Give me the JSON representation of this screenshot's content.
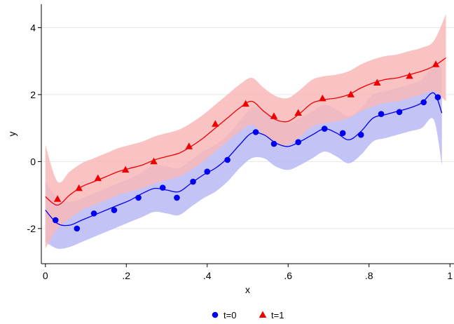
{
  "chart_data": {
    "type": "scatter",
    "title": "",
    "xlabel": "x",
    "ylabel": "y",
    "xlim": [
      -0.01,
      1.01
    ],
    "ylim": [
      -3.05,
      4.7
    ],
    "x_ticks": [
      0,
      0.2,
      0.4,
      0.6,
      0.8,
      1
    ],
    "x_tick_labels": [
      "0",
      ".2",
      ".4",
      ".6",
      ".8",
      "1"
    ],
    "y_ticks": [
      -2,
      0,
      2,
      4
    ],
    "y_tick_labels": [
      "-2",
      "0",
      "2",
      "4"
    ],
    "grid": "horizontal",
    "legend_position": "bottom",
    "series": [
      {
        "name": "t=0",
        "marker": "circle",
        "color": "#0000ee",
        "band_color": "#b8b8f5",
        "x": [
          0.025,
          0.078,
          0.12,
          0.17,
          0.23,
          0.29,
          0.325,
          0.365,
          0.4,
          0.45,
          0.52,
          0.565,
          0.625,
          0.69,
          0.735,
          0.78,
          0.83,
          0.875,
          0.935,
          0.97
        ],
        "y": [
          -1.75,
          -2.0,
          -1.55,
          -1.45,
          -1.08,
          -0.78,
          -1.08,
          -0.6,
          -0.3,
          0.05,
          0.88,
          0.53,
          0.58,
          0.98,
          0.85,
          0.8,
          1.42,
          1.48,
          1.77,
          1.92
        ],
        "fit_x": [
          0.0,
          0.03,
          0.06,
          0.09,
          0.12,
          0.15,
          0.18,
          0.21,
          0.24,
          0.27,
          0.3,
          0.33,
          0.36,
          0.39,
          0.42,
          0.45,
          0.48,
          0.51,
          0.54,
          0.57,
          0.6,
          0.63,
          0.66,
          0.69,
          0.72,
          0.75,
          0.78,
          0.81,
          0.84,
          0.87,
          0.9,
          0.93,
          0.96,
          0.98
        ],
        "fit_y": [
          -1.45,
          -1.85,
          -1.9,
          -1.75,
          -1.6,
          -1.45,
          -1.3,
          -1.15,
          -0.95,
          -0.8,
          -0.85,
          -0.9,
          -0.65,
          -0.4,
          -0.2,
          0.1,
          0.5,
          0.85,
          0.8,
          0.55,
          0.45,
          0.6,
          0.8,
          0.98,
          0.85,
          0.65,
          0.9,
          1.3,
          1.4,
          1.5,
          1.6,
          1.75,
          2.05,
          1.45
        ],
        "band_lower": [
          -2.4,
          -2.6,
          -2.55,
          -2.4,
          -2.25,
          -2.1,
          -1.95,
          -1.8,
          -1.65,
          -1.5,
          -1.55,
          -1.6,
          -1.35,
          -1.1,
          -0.9,
          -0.6,
          -0.2,
          0.1,
          0.1,
          -0.15,
          -0.25,
          -0.1,
          0.1,
          0.3,
          0.15,
          -0.05,
          0.2,
          0.6,
          0.7,
          0.8,
          0.9,
          1.0,
          1.25,
          -0.1
        ],
        "band_upper": [
          -0.6,
          -1.1,
          -1.2,
          -1.1,
          -0.95,
          -0.8,
          -0.65,
          -0.5,
          -0.3,
          -0.1,
          -0.15,
          -0.2,
          0.05,
          0.3,
          0.5,
          0.8,
          1.2,
          1.6,
          1.55,
          1.25,
          1.15,
          1.3,
          1.5,
          1.7,
          1.55,
          1.35,
          1.6,
          2.0,
          2.1,
          2.2,
          2.3,
          2.45,
          2.85,
          2.8
        ]
      },
      {
        "name": "t=1",
        "marker": "triangle",
        "color": "#ee0000",
        "band_color": "#f8b8b8",
        "x": [
          0.03,
          0.083,
          0.13,
          0.198,
          0.268,
          0.355,
          0.42,
          0.495,
          0.565,
          0.625,
          0.685,
          0.755,
          0.82,
          0.9,
          0.965
        ],
        "y": [
          -1.12,
          -0.8,
          -0.5,
          -0.25,
          0.0,
          0.45,
          1.12,
          1.72,
          1.35,
          1.45,
          1.88,
          2.0,
          2.35,
          2.55,
          2.9
        ],
        "fit_x": [
          0.0,
          0.03,
          0.06,
          0.09,
          0.12,
          0.15,
          0.18,
          0.21,
          0.24,
          0.27,
          0.3,
          0.33,
          0.36,
          0.39,
          0.42,
          0.45,
          0.48,
          0.51,
          0.54,
          0.57,
          0.6,
          0.63,
          0.66,
          0.69,
          0.72,
          0.75,
          0.78,
          0.81,
          0.84,
          0.87,
          0.9,
          0.93,
          0.96,
          0.99
        ],
        "fit_y": [
          -1.05,
          -1.3,
          -1.0,
          -0.75,
          -0.6,
          -0.45,
          -0.3,
          -0.2,
          -0.1,
          0.05,
          0.15,
          0.25,
          0.45,
          0.7,
          1.0,
          1.3,
          1.6,
          1.8,
          1.5,
          1.25,
          1.2,
          1.45,
          1.75,
          1.85,
          1.9,
          2.0,
          2.2,
          2.35,
          2.45,
          2.5,
          2.6,
          2.7,
          2.85,
          3.1
        ],
        "band_lower": [
          -2.6,
          -2.0,
          -1.7,
          -1.45,
          -1.3,
          -1.15,
          -1.0,
          -0.9,
          -0.8,
          -0.65,
          -0.55,
          -0.45,
          -0.25,
          0.0,
          0.3,
          0.6,
          0.9,
          1.1,
          0.8,
          0.55,
          0.5,
          0.75,
          1.05,
          1.15,
          1.2,
          1.3,
          1.5,
          1.65,
          1.75,
          1.8,
          1.9,
          2.0,
          2.1,
          1.8
        ],
        "band_upper": [
          0.5,
          -0.6,
          -0.3,
          -0.05,
          0.1,
          0.25,
          0.4,
          0.5,
          0.6,
          0.75,
          0.85,
          0.95,
          1.15,
          1.4,
          1.7,
          2.0,
          2.3,
          2.5,
          2.2,
          1.95,
          1.9,
          2.15,
          2.45,
          2.55,
          2.6,
          2.7,
          2.9,
          3.05,
          3.15,
          3.2,
          3.3,
          3.4,
          3.6,
          4.4
        ]
      }
    ]
  }
}
